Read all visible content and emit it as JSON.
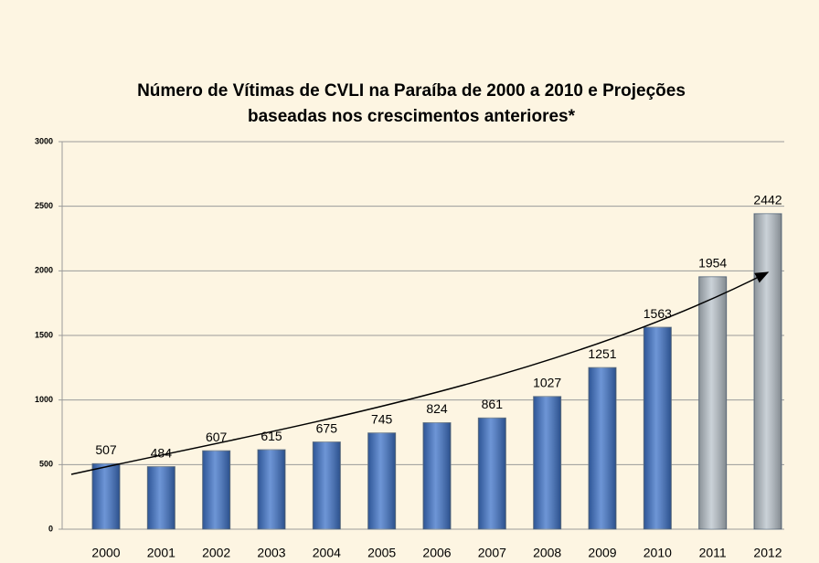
{
  "chart_data": {
    "type": "bar",
    "title": [
      "Número de Vítimas de CVLI na Paraíba de 2000 a 2010 e Projeções",
      "baseadas nos crescimentos anteriores*"
    ],
    "categories": [
      "2000",
      "2001",
      "2002",
      "2003",
      "2004",
      "2005",
      "2006",
      "2007",
      "2008",
      "2009",
      "2010",
      "2011",
      "2012"
    ],
    "values": [
      507,
      484,
      607,
      615,
      675,
      745,
      824,
      861,
      1027,
      1251,
      1563,
      1954,
      2442
    ],
    "colors": [
      "#3d72c8",
      "#3d72c8",
      "#3d72c8",
      "#3d72c8",
      "#3d72c8",
      "#3d72c8",
      "#3d72c8",
      "#3d72c8",
      "#3d72c8",
      "#3d72c8",
      "#3d72c8",
      "#b9c3cb",
      "#b9c3cb"
    ],
    "ylim": [
      0,
      3000
    ],
    "yticks": [
      0,
      500,
      1000,
      1500,
      2000,
      2500,
      3000
    ],
    "grid": true
  }
}
